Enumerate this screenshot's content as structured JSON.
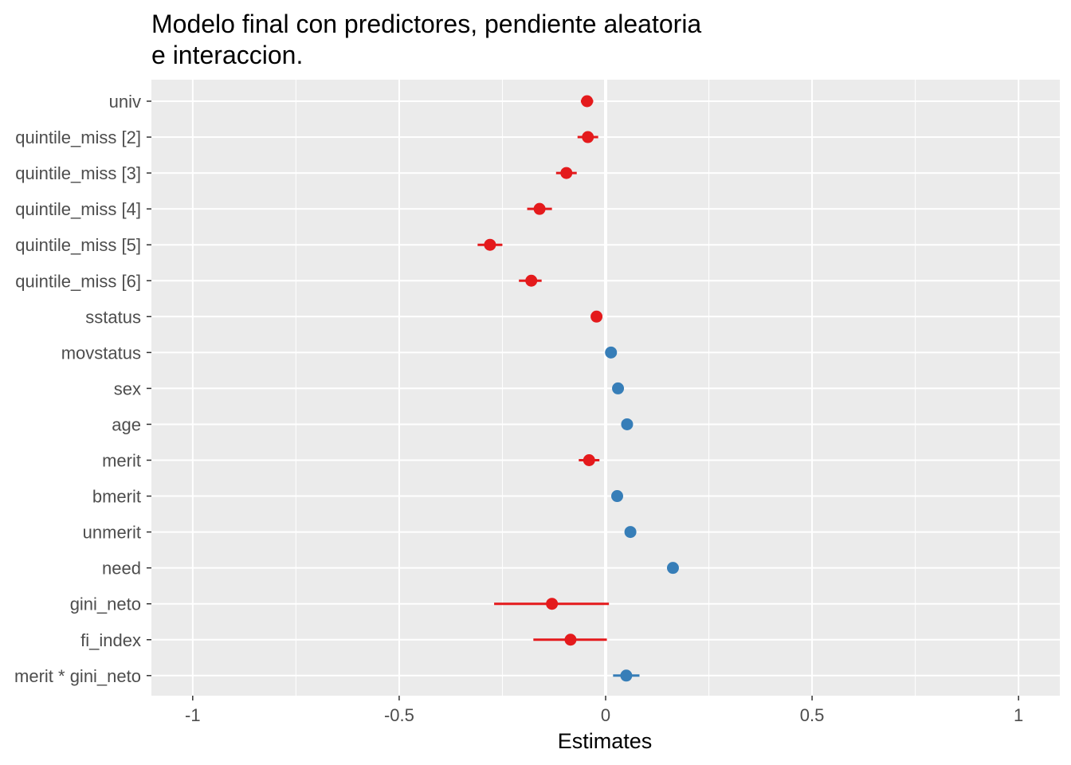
{
  "chart_data": {
    "type": "scatter",
    "title": [
      "Modelo final con predictores, pendiente aleatoria",
      "e interaccion."
    ],
    "xlabel": "Estimates",
    "ylabel": "",
    "xlim": [
      -1.1,
      1.1
    ],
    "x_ticks": [
      -1,
      -0.5,
      0,
      0.5,
      1
    ],
    "x_tick_labels": [
      "-1",
      "-0.5",
      "0",
      "0.5",
      "1"
    ],
    "grid": true,
    "legend": "none",
    "colors": {
      "negative": "#e41a1c",
      "positive": "#377eb8",
      "panel": "#ebebeb",
      "grid": "#ffffff",
      "zero_line": "#ffffff"
    },
    "terms": [
      {
        "label": "univ",
        "estimate": -0.045,
        "ci": [
          -0.06,
          -0.03
        ]
      },
      {
        "label": "quintile_miss [2]",
        "estimate": -0.043,
        "ci": [
          -0.068,
          -0.018
        ]
      },
      {
        "label": "quintile_miss [3]",
        "estimate": -0.095,
        "ci": [
          -0.12,
          -0.07
        ]
      },
      {
        "label": "quintile_miss [4]",
        "estimate": -0.16,
        "ci": [
          -0.19,
          -0.13
        ]
      },
      {
        "label": "quintile_miss [5]",
        "estimate": -0.28,
        "ci": [
          -0.31,
          -0.25
        ]
      },
      {
        "label": "quintile_miss [6]",
        "estimate": -0.18,
        "ci": [
          -0.21,
          -0.155
        ]
      },
      {
        "label": "sstatus",
        "estimate": -0.022,
        "ci": [
          -0.035,
          -0.01
        ]
      },
      {
        "label": "movstatus",
        "estimate": 0.013,
        "ci": [
          0.003,
          0.023
        ]
      },
      {
        "label": "sex",
        "estimate": 0.03,
        "ci": [
          0.02,
          0.04
        ]
      },
      {
        "label": "age",
        "estimate": 0.052,
        "ci": [
          0.042,
          0.062
        ]
      },
      {
        "label": "merit",
        "estimate": -0.04,
        "ci": [
          -0.065,
          -0.015
        ]
      },
      {
        "label": "bmerit",
        "estimate": 0.028,
        "ci": [
          0.018,
          0.038
        ]
      },
      {
        "label": "unmerit",
        "estimate": 0.06,
        "ci": [
          0.05,
          0.07
        ]
      },
      {
        "label": "need",
        "estimate": 0.163,
        "ci": [
          0.153,
          0.173
        ]
      },
      {
        "label": "gini_neto",
        "estimate": -0.13,
        "ci": [
          -0.27,
          0.008
        ]
      },
      {
        "label": "fi_index",
        "estimate": -0.085,
        "ci": [
          -0.175,
          0.003
        ]
      },
      {
        "label": "merit * gini_neto",
        "estimate": 0.05,
        "ci": [
          0.018,
          0.082
        ]
      }
    ]
  }
}
